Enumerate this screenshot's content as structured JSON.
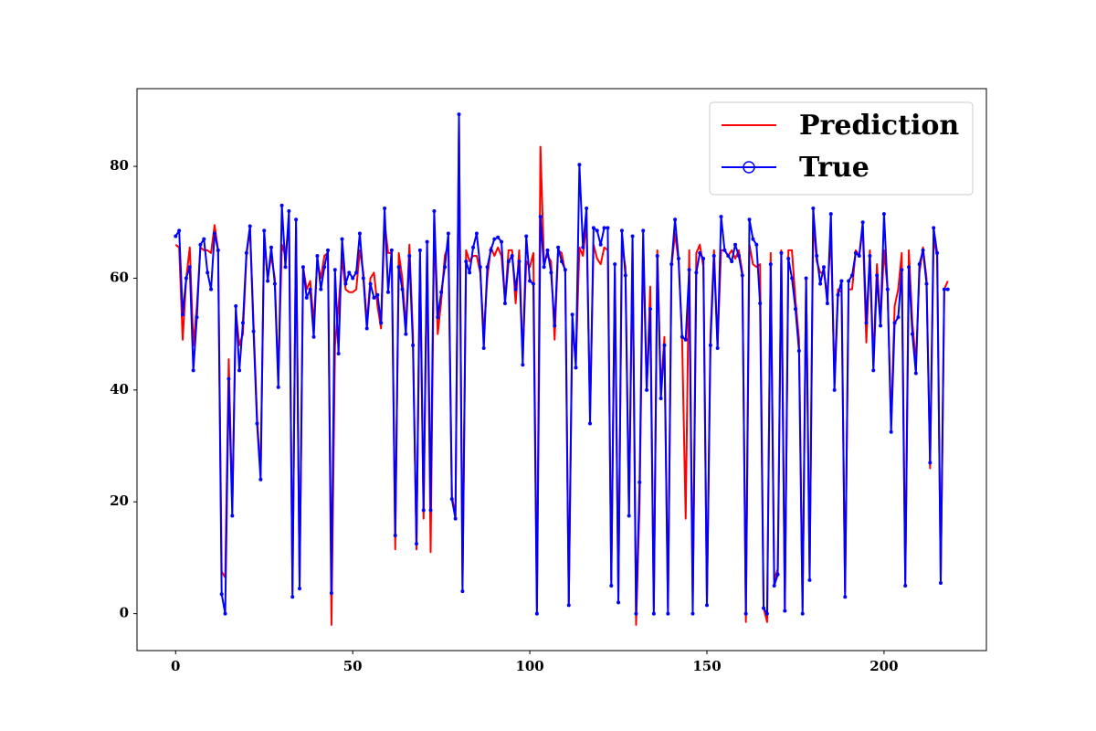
{
  "chart_data": {
    "type": "line",
    "xlim": [
      -10.9,
      228.9
    ],
    "xticks": [
      0,
      50,
      100,
      150,
      200
    ],
    "ylim": [
      -6.6,
      93.9
    ],
    "yticks": [
      0,
      20,
      40,
      60,
      80
    ],
    "legend": "upper right",
    "grid": false,
    "series": [
      {
        "name": "Prediction",
        "color": "#ff0000",
        "marker": null,
        "values": [
          66,
          65.5,
          49,
          60,
          65.5,
          48,
          55,
          65.5,
          65,
          65,
          64.5,
          69.5,
          65,
          7.5,
          6.5,
          45.5,
          19,
          54,
          48,
          50,
          64,
          69,
          52,
          35,
          25,
          67,
          60,
          64,
          60,
          42,
          66,
          64,
          70,
          4,
          69,
          5,
          62,
          58,
          59.5,
          52,
          63,
          60,
          64,
          64.5,
          -2,
          48,
          55,
          63.5,
          58,
          57.5,
          57.5,
          58,
          65,
          61,
          52,
          60,
          61,
          55,
          51,
          70,
          64.5,
          64.5,
          11.5,
          64.5,
          60,
          51,
          66,
          50,
          11.5,
          63,
          17,
          65,
          11,
          70,
          50,
          56,
          64,
          66,
          21,
          17.5,
          88,
          5,
          65,
          63,
          64,
          64,
          61,
          50,
          60,
          65.5,
          64,
          65.5,
          64,
          56,
          65,
          65,
          55.5,
          65,
          46,
          63,
          62,
          64.5,
          1,
          83.5,
          63,
          64,
          63,
          49,
          65,
          64.5,
          61,
          2,
          52,
          45,
          65.5,
          64,
          70,
          36,
          66,
          63.5,
          62.5,
          65.5,
          65,
          6,
          61,
          3,
          66,
          62,
          18,
          65,
          -2,
          20,
          66,
          40,
          58.5,
          1,
          65,
          40,
          49.5,
          1,
          62,
          68,
          63,
          49,
          17,
          65,
          2,
          64.5,
          66,
          62,
          2,
          50,
          65,
          48,
          65,
          65,
          64,
          65,
          63.5,
          65,
          61,
          -1.5,
          66,
          62.5,
          62,
          62.5,
          1,
          -1.5,
          64.5,
          6,
          8,
          65,
          1,
          65,
          65,
          56,
          49,
          1,
          60,
          7,
          70,
          63,
          61,
          61,
          57,
          68,
          42,
          58,
          57.5,
          4,
          58,
          58,
          65,
          64,
          69,
          48.5,
          65,
          45,
          62.5,
          52,
          65,
          58,
          34,
          55,
          58,
          64.5,
          6,
          65,
          52,
          45,
          61,
          65.5,
          60,
          26,
          67,
          64,
          6,
          58,
          59.5
        ]
      },
      {
        "name": "True",
        "color": "#0000ff",
        "marker": "o",
        "values": [
          67.5,
          68.5,
          53.5,
          60,
          62,
          43.5,
          53,
          66,
          67,
          61,
          58,
          68,
          65,
          3.5,
          0,
          42,
          17.5,
          55,
          43.5,
          52,
          64.5,
          69.3,
          50.5,
          34,
          24,
          68.5,
          59.5,
          65.5,
          59,
          40.5,
          73,
          62,
          72,
          3,
          70.5,
          4.5,
          62,
          56.5,
          58,
          49.5,
          64,
          58,
          62,
          65,
          3.7,
          61.5,
          46.5,
          67,
          59,
          61,
          60,
          61,
          68,
          60,
          51,
          59,
          56.5,
          57,
          52,
          72.5,
          57.5,
          65,
          14,
          62,
          58,
          50,
          64,
          48,
          12.5,
          65,
          18.5,
          66.5,
          18.5,
          72,
          53,
          57.5,
          62,
          68,
          20.5,
          17,
          89.3,
          4,
          63,
          61,
          65.5,
          68,
          62,
          47.5,
          62,
          65,
          67,
          67.3,
          66.5,
          55.5,
          63,
          64,
          58,
          63,
          44.5,
          67.5,
          59.5,
          59,
          0,
          71,
          62,
          65,
          61,
          51.5,
          65.5,
          63,
          61.5,
          1.5,
          53.5,
          44,
          80.3,
          65.5,
          72.5,
          34,
          69,
          68.5,
          66,
          69,
          69,
          5,
          62.5,
          2,
          68.5,
          60.5,
          17.5,
          67.5,
          0,
          23.5,
          68.5,
          40,
          54.5,
          0,
          64,
          38.5,
          48,
          0,
          62.5,
          70.5,
          63.5,
          49.5,
          49,
          61.5,
          0,
          61,
          64.5,
          63.5,
          1.5,
          48,
          64,
          47.5,
          71,
          65,
          64,
          63,
          66,
          64,
          60.5,
          0,
          70.5,
          67,
          66,
          55.5,
          1,
          0,
          62.5,
          5,
          7,
          64.5,
          0.5,
          63.5,
          60,
          54.5,
          47,
          0,
          60,
          6,
          72.5,
          64,
          59,
          62,
          55.5,
          71.5,
          40,
          57,
          59.5,
          3,
          59.5,
          60.5,
          64.5,
          64,
          70,
          52,
          64,
          43.5,
          60.5,
          51.5,
          71.5,
          58,
          32.5,
          52,
          53,
          61.5,
          5,
          62,
          50,
          43,
          62.5,
          65,
          59,
          27,
          69,
          64.5,
          5.5,
          58,
          58
        ]
      }
    ]
  }
}
